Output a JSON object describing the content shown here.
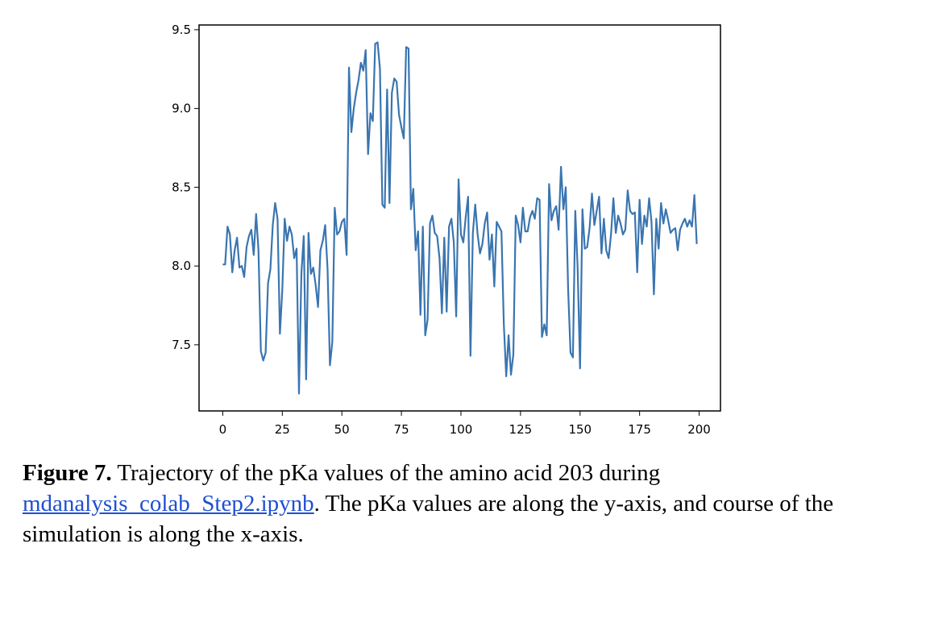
{
  "chart_data": {
    "type": "line",
    "x": [
      0,
      1,
      2,
      3,
      4,
      5,
      6,
      7,
      8,
      9,
      10,
      11,
      12,
      13,
      14,
      15,
      16,
      17,
      18,
      19,
      20,
      21,
      22,
      23,
      24,
      25,
      26,
      27,
      28,
      29,
      30,
      31,
      32,
      33,
      34,
      35,
      36,
      37,
      38,
      39,
      40,
      41,
      42,
      43,
      44,
      45,
      46,
      47,
      48,
      49,
      50,
      51,
      52,
      53,
      54,
      55,
      56,
      57,
      58,
      59,
      60,
      61,
      62,
      63,
      64,
      65,
      66,
      67,
      68,
      69,
      70,
      71,
      72,
      73,
      74,
      75,
      76,
      77,
      78,
      79,
      80,
      81,
      82,
      83,
      84,
      85,
      86,
      87,
      88,
      89,
      90,
      91,
      92,
      93,
      94,
      95,
      96,
      97,
      98,
      99,
      100,
      101,
      102,
      103,
      104,
      105,
      106,
      107,
      108,
      109,
      110,
      111,
      112,
      113,
      114,
      115,
      116,
      117,
      118,
      119,
      120,
      121,
      122,
      123,
      124,
      125,
      126,
      127,
      128,
      129,
      130,
      131,
      132,
      133,
      134,
      135,
      136,
      137,
      138,
      139,
      140,
      141,
      142,
      143,
      144,
      145,
      146,
      147,
      148,
      149,
      150,
      151,
      152,
      153,
      154,
      155,
      156,
      157,
      158,
      159,
      160,
      161,
      162,
      163,
      164,
      165,
      166,
      167,
      168,
      169,
      170,
      171,
      172,
      173,
      174,
      175,
      176,
      177,
      178,
      179,
      180,
      181,
      182,
      183,
      184,
      185,
      186,
      187,
      188,
      189,
      190,
      191,
      192,
      193,
      194,
      195,
      196,
      197,
      198,
      199
    ],
    "values": [
      8.01,
      8.01,
      8.25,
      8.2,
      7.96,
      8.1,
      8.18,
      7.99,
      8.0,
      7.93,
      8.12,
      8.19,
      8.23,
      8.07,
      8.33,
      8.1,
      7.46,
      7.4,
      7.45,
      7.89,
      7.98,
      8.26,
      8.4,
      8.3,
      7.57,
      7.85,
      8.3,
      8.16,
      8.25,
      8.2,
      8.05,
      8.11,
      7.19,
      7.95,
      8.19,
      7.28,
      8.21,
      7.95,
      7.99,
      7.88,
      7.74,
      8.1,
      8.16,
      8.26,
      7.98,
      7.37,
      7.52,
      8.37,
      8.2,
      8.22,
      8.28,
      8.3,
      8.07,
      9.26,
      8.85,
      9.0,
      9.1,
      9.18,
      9.29,
      9.24,
      9.37,
      8.71,
      8.97,
      8.92,
      9.41,
      9.42,
      9.25,
      8.39,
      8.37,
      9.12,
      8.4,
      9.1,
      9.19,
      9.17,
      8.96,
      8.88,
      8.81,
      9.39,
      9.38,
      8.36,
      8.49,
      8.1,
      8.22,
      7.69,
      8.25,
      7.56,
      7.66,
      8.27,
      8.32,
      8.21,
      8.19,
      8.05,
      7.7,
      8.18,
      7.71,
      8.25,
      8.3,
      8.15,
      7.68,
      8.55,
      8.2,
      8.15,
      8.31,
      8.44,
      7.43,
      8.21,
      8.39,
      8.2,
      8.08,
      8.14,
      8.27,
      8.34,
      8.04,
      8.2,
      7.87,
      8.28,
      8.25,
      8.22,
      7.63,
      7.3,
      7.56,
      7.31,
      7.44,
      8.32,
      8.26,
      8.15,
      8.37,
      8.22,
      8.22,
      8.31,
      8.35,
      8.3,
      8.43,
      8.42,
      7.55,
      7.63,
      7.56,
      8.52,
      8.29,
      8.35,
      8.38,
      8.23,
      8.63,
      8.36,
      8.5,
      7.85,
      7.45,
      7.42,
      8.35,
      7.98,
      7.35,
      8.36,
      8.11,
      8.12,
      8.24,
      8.46,
      8.26,
      8.35,
      8.44,
      8.08,
      8.3,
      8.1,
      8.05,
      8.2,
      8.43,
      8.21,
      8.32,
      8.27,
      8.2,
      8.23,
      8.48,
      8.35,
      8.33,
      8.34,
      7.96,
      8.42,
      8.14,
      8.32,
      8.25,
      8.43,
      8.28,
      7.82,
      8.3,
      8.11,
      8.4,
      8.27,
      8.36,
      8.29,
      8.21,
      8.23,
      8.24,
      8.1,
      8.23,
      8.27,
      8.3,
      8.25,
      8.29,
      8.25,
      8.45,
      8.14
    ],
    "color": "#3a75b0",
    "xlim": [
      -9.95,
      208.95
    ],
    "xticks": [
      0,
      25,
      50,
      75,
      100,
      125,
      150,
      175,
      200
    ],
    "ylim": [
      7.08,
      9.53
    ],
    "yticks": [
      7.5,
      {
        "value": 8,
        "label": "8.0"
      },
      8.5,
      {
        "value": 9,
        "label": "9.0"
      },
      9.5
    ]
  },
  "caption": {
    "label": "Figure 7.",
    "text_before": "Trajectory of the pKa values of the amino acid 203 during",
    "link": "mdanalysis_colab_Step2.ipynb",
    "text_after": ". The pKa values are along the y-axis, and course of the simulation is along the x-axis."
  }
}
